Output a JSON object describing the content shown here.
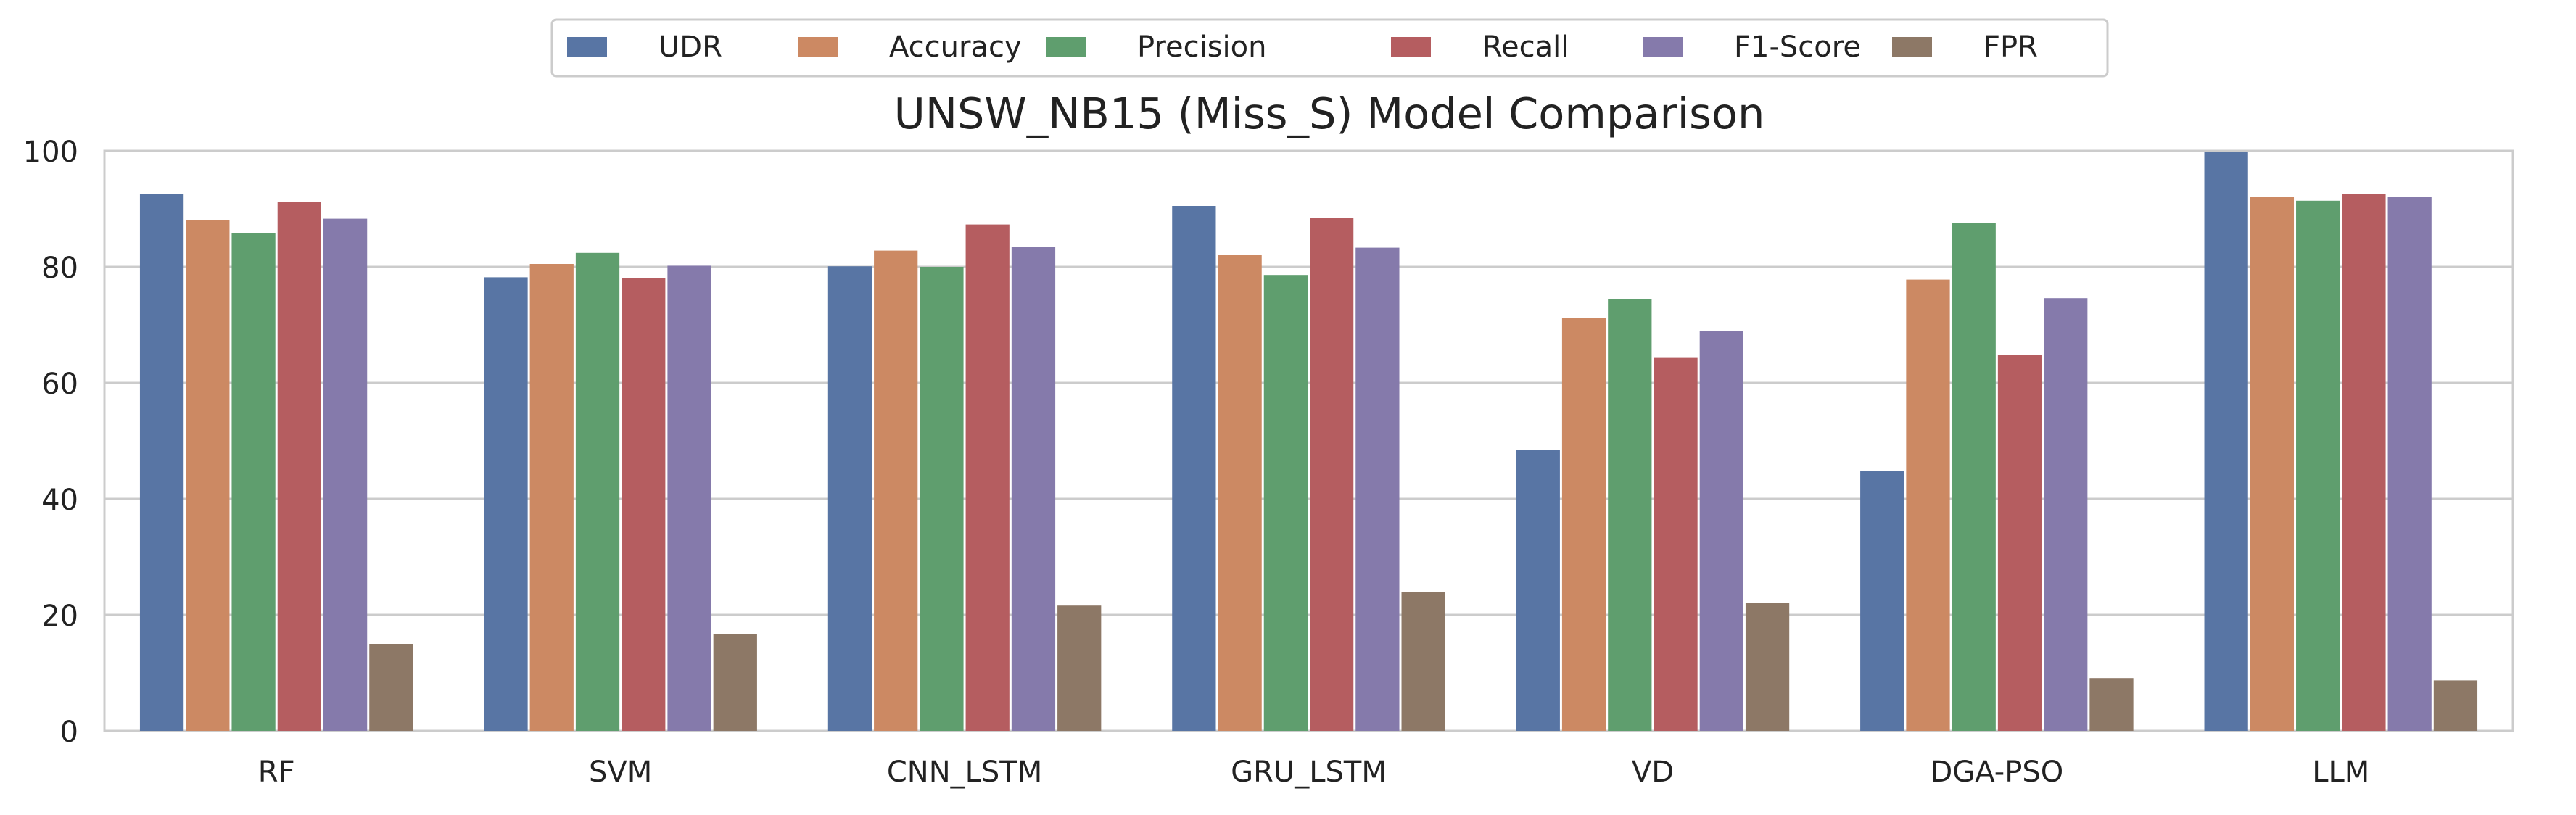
{
  "chart_data": {
    "type": "bar",
    "title": "UNSW_NB15 (Miss_S) Model Comparison",
    "xlabel": "",
    "ylabel": "",
    "ylim": [
      0,
      100
    ],
    "yticks": [
      "0",
      "20",
      "40",
      "60",
      "80",
      "100"
    ],
    "grid": "horizontal",
    "legend_position": "top-center",
    "categories": [
      "RF",
      "SVM",
      "CNN_LSTM",
      "GRU_LSTM",
      "VD",
      "DGA-PSO",
      "LLM"
    ],
    "series": [
      {
        "name": "UDR",
        "color": "#5875a4",
        "values": [
          92.5,
          78.2,
          80.1,
          90.5,
          48.5,
          44.8,
          99.8
        ]
      },
      {
        "name": "Accuracy",
        "color": "#cc8963",
        "values": [
          88.0,
          80.5,
          82.8,
          82.1,
          71.2,
          77.8,
          92.0
        ]
      },
      {
        "name": "Precision",
        "color": "#5f9e6e",
        "values": [
          85.8,
          82.4,
          80.0,
          78.6,
          74.5,
          87.6,
          91.4
        ]
      },
      {
        "name": "Recall",
        "color": "#b55d60",
        "values": [
          91.2,
          78.0,
          87.3,
          88.4,
          64.3,
          64.8,
          92.6
        ]
      },
      {
        "name": "F1-Score",
        "color": "#857aab",
        "values": [
          88.3,
          80.2,
          83.5,
          83.3,
          69.0,
          74.6,
          92.0
        ]
      },
      {
        "name": "FPR",
        "color": "#8d7866",
        "values": [
          15.0,
          16.7,
          21.6,
          24.0,
          22.0,
          9.1,
          8.7
        ]
      }
    ]
  }
}
